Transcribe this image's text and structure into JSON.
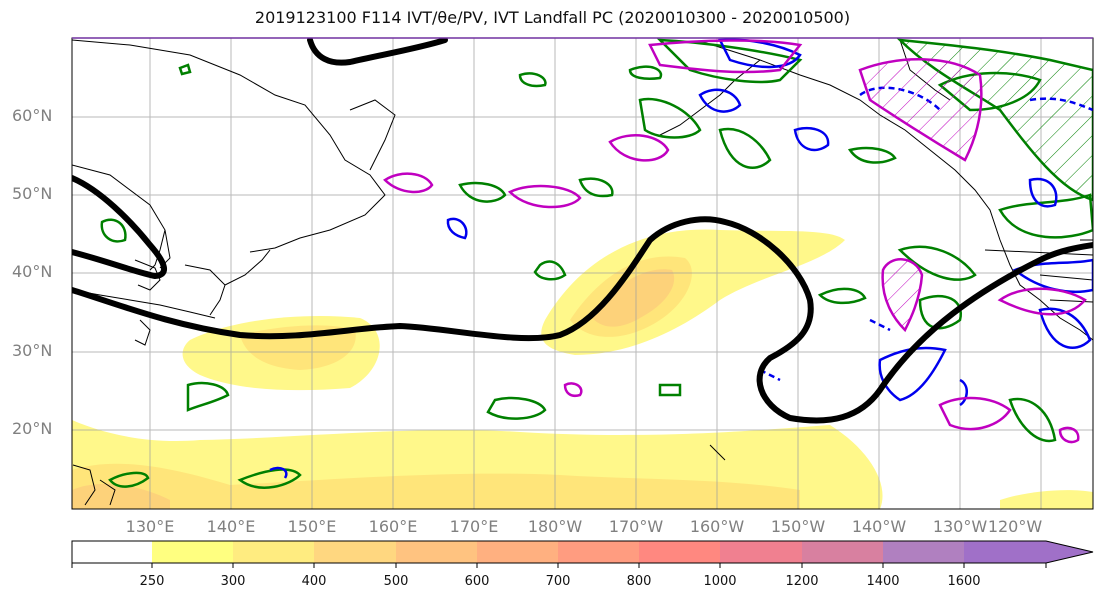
{
  "title": "2019123100 F114 IVT/θe/PV, IVT Landfall PC (2020010300 - 2020010500)",
  "lat_labels": [
    "60°N",
    "50°N",
    "40°N",
    "30°N",
    "20°N"
  ],
  "lon_labels": [
    "130°E",
    "140°E",
    "150°E",
    "160°E",
    "170°E",
    "180°W",
    "170°W",
    "160°W",
    "150°W",
    "140°W",
    "130°W",
    "120°W"
  ],
  "colorbar": {
    "ticks": [
      "250",
      "300",
      "400",
      "500",
      "600",
      "700",
      "800",
      "1000",
      "1200",
      "1400",
      "1600"
    ],
    "colors": [
      "#ffffff",
      "#ffff80",
      "#ffec80",
      "#ffd780",
      "#ffc380",
      "#ffb080",
      "#ff9c80",
      "#ff8880",
      "#f08090",
      "#d880a0",
      "#b080c0",
      "#a070c8"
    ]
  },
  "colors": {
    "ivt_fill": [
      "#fff88a",
      "#ffe57a",
      "#fdd27a"
    ],
    "pv_contour": "#008000",
    "neg_contour": "#0000ee",
    "pos_contour": "#c000c0",
    "landfall_contour": "#000000"
  }
}
